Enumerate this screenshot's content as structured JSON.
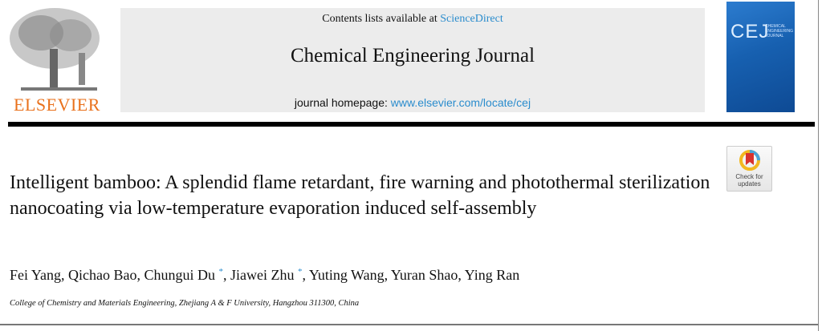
{
  "publisher": {
    "logo_text": "ELSEVIER"
  },
  "banner": {
    "contents_prefix": "Contents lists available at ",
    "contents_link": "ScienceDirect",
    "journal_title": "Chemical Engineering Journal",
    "homepage_prefix": "journal homepage: ",
    "homepage_link": "www.elsevier.com/locate/cej"
  },
  "cover": {
    "abbrev": "CEJ",
    "full": "CHEMICAL ENGINEERING JOURNAL"
  },
  "badge": {
    "label": "Check for updates"
  },
  "article": {
    "title": "Intelligent bamboo: A splendid flame retardant, fire warning and photothermal sterilization nanocoating via low-temperature evaporation induced self-assembly",
    "authors": [
      {
        "name": "Fei Yang"
      },
      {
        "name": "Qichao Bao"
      },
      {
        "name": "Chungui Du",
        "mark": "*"
      },
      {
        "name": "Jiawei Zhu",
        "mark": "*"
      },
      {
        "name": "Yuting Wang"
      },
      {
        "name": "Yuran Shao"
      },
      {
        "name": "Ying Ran"
      }
    ],
    "affiliation": "College of Chemistry and Materials Engineering, Zhejiang A & F University, Hangzhou 311300, China"
  },
  "colors": {
    "link": "#2a8ccd",
    "elsevier_orange": "#e9711c"
  }
}
